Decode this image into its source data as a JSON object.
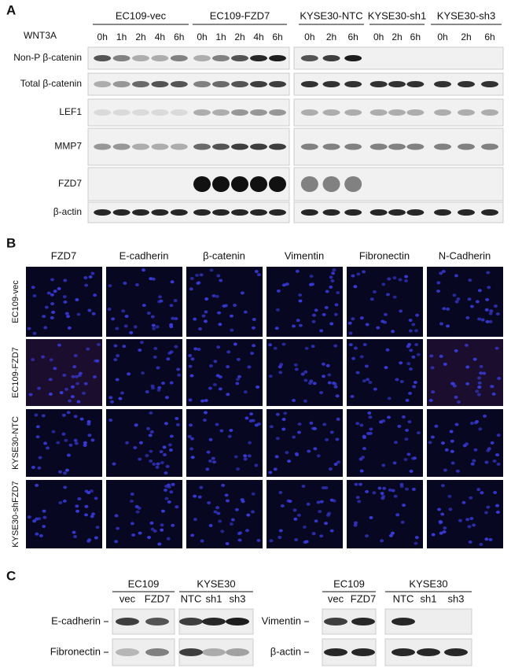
{
  "panel_a": {
    "label": "A",
    "treatment": "WNT3A",
    "groups": [
      {
        "name": "EC109-vec",
        "lanes": [
          "0h",
          "1h",
          "2h",
          "4h",
          "6h"
        ]
      },
      {
        "name": "EC109-FZD7",
        "lanes": [
          "0h",
          "1h",
          "2h",
          "4h",
          "6h"
        ]
      },
      {
        "name": "KYSE30-NTC",
        "lanes": [
          "0h",
          "2h",
          "6h"
        ]
      },
      {
        "name": "KYSE30-sh1",
        "lanes": [
          "0h",
          "2h",
          "6h"
        ]
      },
      {
        "name": "KYSE30-sh3",
        "lanes": [
          "0h",
          "2h",
          "6h"
        ]
      }
    ],
    "rows": [
      "Non-P β-catenin",
      "Total β-catenin",
      "LEF1",
      "MMP7",
      "FZD7",
      "β-actin"
    ]
  },
  "panel_b": {
    "label": "B",
    "columns": [
      "FZD7",
      "E-cadherin",
      "β-catenin",
      "Vimentin",
      "Fibronectin",
      "N-Cadherin"
    ],
    "rows": [
      "EC109-vec",
      "EC109-FZD7",
      "KYSE30-NTC",
      "KYSE30-shFZD7"
    ]
  },
  "panel_c": {
    "label": "C",
    "left": {
      "groups": [
        {
          "name": "EC109",
          "lanes": [
            "vec",
            "FZD7"
          ]
        },
        {
          "name": "KYSE30",
          "lanes": [
            "NTC",
            "sh1",
            "sh3"
          ]
        }
      ],
      "rows": [
        "E-cadherin",
        "Fibronectin"
      ]
    },
    "right": {
      "groups": [
        {
          "name": "EC109",
          "lanes": [
            "vec",
            "FZD7"
          ]
        },
        {
          "name": "KYSE30",
          "lanes": [
            "NTC",
            "sh1",
            "sh3"
          ]
        }
      ],
      "rows": [
        "Vimentin",
        "β-actin"
      ]
    }
  }
}
